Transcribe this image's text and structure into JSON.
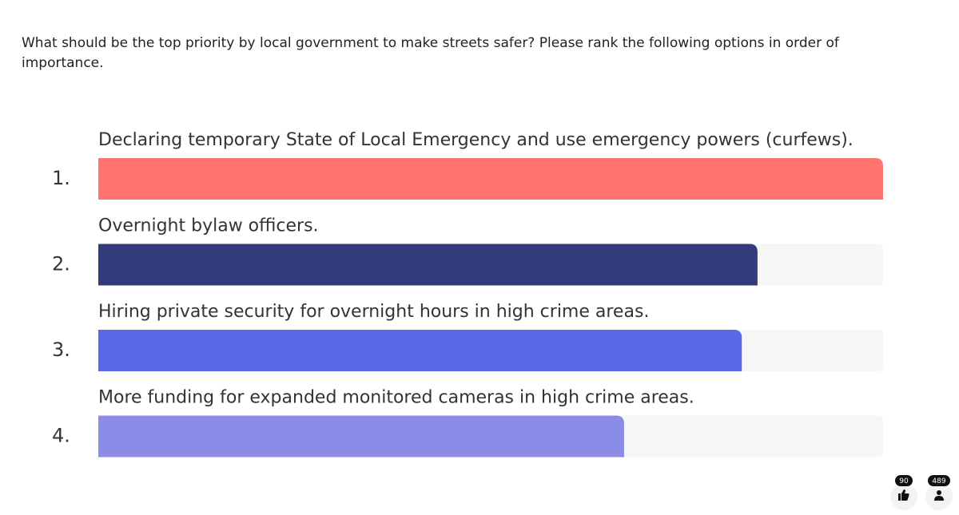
{
  "chart_data": {
    "type": "bar",
    "title": "What should be the top priority by local government to make streets safer? Please rank the following options in order of importance.",
    "categories": [
      "Declaring temporary State of Local Emergency and use emergency powers (curfews).",
      "Overnight bylaw officers.",
      "Hiring private security for overnight hours in high crime areas.",
      "More funding for expanded monitored cameras in high crime areas."
    ],
    "ranks": [
      "1.",
      "2.",
      "3.",
      "4."
    ],
    "values": [
      100,
      84,
      82,
      67
    ],
    "colors": [
      "#ff7370",
      "#323b7c",
      "#5769e5",
      "#8b8be8"
    ],
    "xlim": [
      0,
      100
    ]
  },
  "counters": {
    "reactions": 90,
    "participants": 489
  }
}
